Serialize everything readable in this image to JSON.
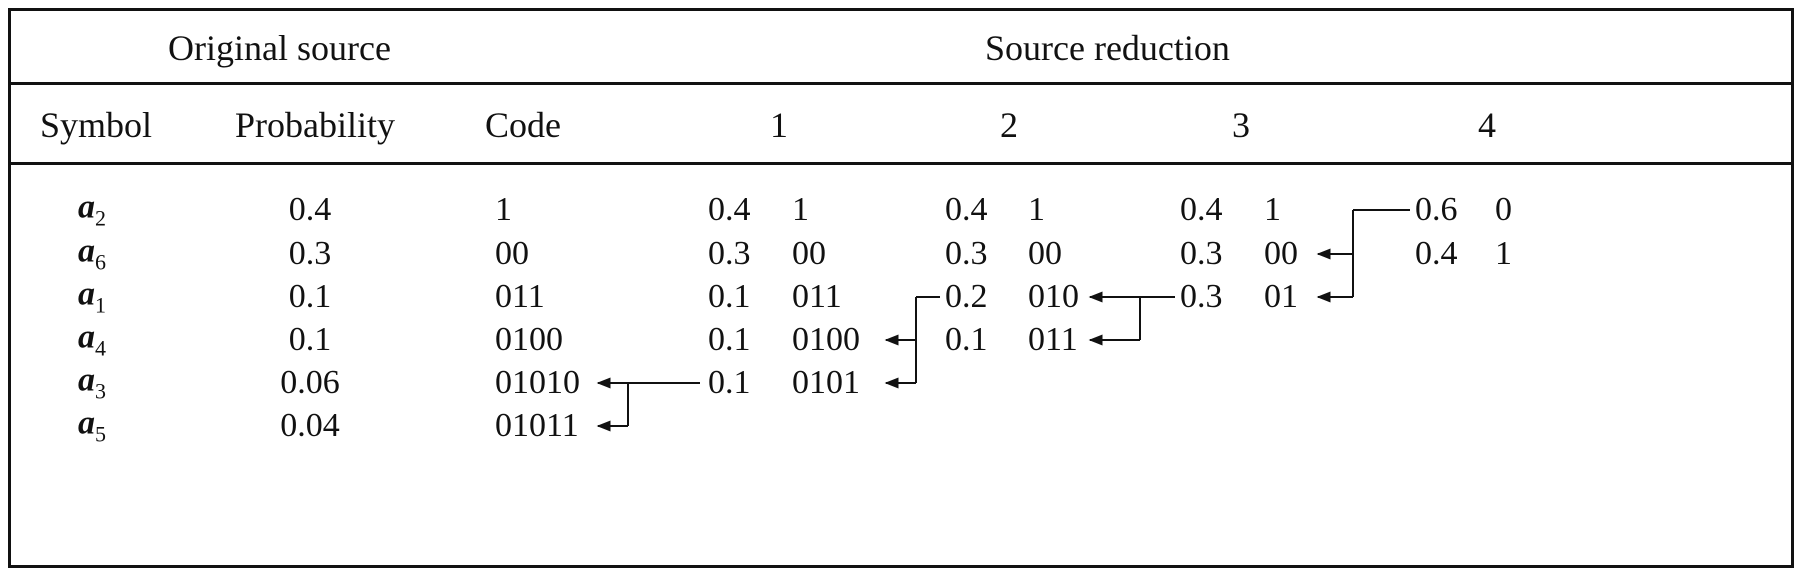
{
  "header": {
    "original_source": "Original source",
    "source_reduction": "Source reduction"
  },
  "columns": {
    "symbol": "Symbol",
    "probability": "Probability",
    "code": "Code",
    "r1": "1",
    "r2": "2",
    "r3": "3",
    "r4": "4"
  },
  "rows": [
    {
      "symbol": "a",
      "sub": "2",
      "prob": "0.4",
      "code": "1"
    },
    {
      "symbol": "a",
      "sub": "6",
      "prob": "0.3",
      "code": "00"
    },
    {
      "symbol": "a",
      "sub": "1",
      "prob": "0.1",
      "code": "011"
    },
    {
      "symbol": "a",
      "sub": "4",
      "prob": "0.1",
      "code": "0100"
    },
    {
      "symbol": "a",
      "sub": "3",
      "prob": "0.06",
      "code": "01010"
    },
    {
      "symbol": "a",
      "sub": "5",
      "prob": "0.04",
      "code": "01011"
    }
  ],
  "reductions": {
    "r1": [
      {
        "p": "0.4",
        "c": "1"
      },
      {
        "p": "0.3",
        "c": "00"
      },
      {
        "p": "0.1",
        "c": "011"
      },
      {
        "p": "0.1",
        "c": "0100"
      },
      {
        "p": "0.1",
        "c": "0101"
      }
    ],
    "r2": [
      {
        "p": "0.4",
        "c": "1"
      },
      {
        "p": "0.3",
        "c": "00"
      },
      {
        "p": "0.2",
        "c": "010"
      },
      {
        "p": "0.1",
        "c": "011"
      }
    ],
    "r3": [
      {
        "p": "0.4",
        "c": "1"
      },
      {
        "p": "0.3",
        "c": "00"
      },
      {
        "p": "0.3",
        "c": "01"
      }
    ],
    "r4": [
      {
        "p": "0.6",
        "c": "0"
      },
      {
        "p": "0.4",
        "c": "1"
      }
    ]
  }
}
